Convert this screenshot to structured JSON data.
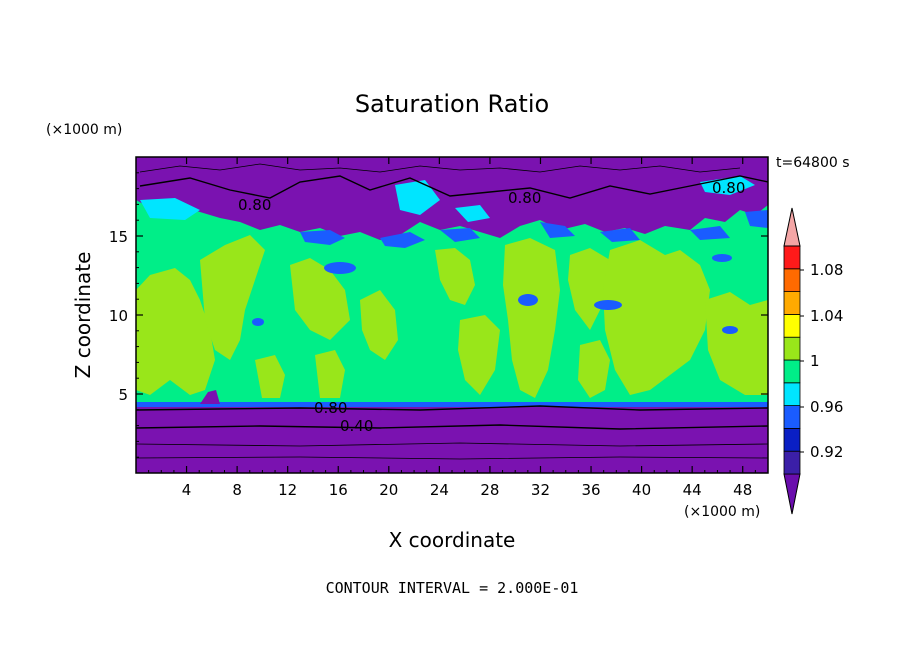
{
  "chart_data": {
    "type": "heatmap",
    "title": "Saturation Ratio",
    "xlabel": "X coordinate",
    "ylabel": "Z coordinate",
    "x_unit": "(×1000 m)",
    "z_unit": "(×1000 m)",
    "time_label": "t=64800 s",
    "contour_interval_text": "CONTOUR INTERVAL = 2.000E-01",
    "xlim": [
      0,
      50
    ],
    "ylim": [
      0,
      20
    ],
    "x_ticks": [
      "4",
      "8",
      "12",
      "16",
      "20",
      "24",
      "28",
      "32",
      "36",
      "40",
      "44",
      "48"
    ],
    "y_ticks": [
      "5",
      "10",
      "15"
    ],
    "contour_labels": [
      "0.80",
      "0.80",
      "0.80",
      "0.80",
      "0.40"
    ],
    "colorbar": {
      "labels": [
        "1.08",
        "1.04",
        "1",
        "0.96",
        "0.92"
      ],
      "colors": [
        "#6a0dad",
        "#3b1fa8",
        "#0a1fc4",
        "#1a5cff",
        "#00e5ff",
        "#00ee88",
        "#99e61a",
        "#ffff00",
        "#ffaa00",
        "#ff6a00",
        "#ff1a1a",
        "#f4a6a6"
      ]
    },
    "field_colors": {
      "dry": "#7a12b0",
      "near_one": "#00ee88",
      "slightly_super": "#99e61a",
      "sub_blue": "#1a5cff",
      "cyan": "#00e5ff"
    }
  }
}
